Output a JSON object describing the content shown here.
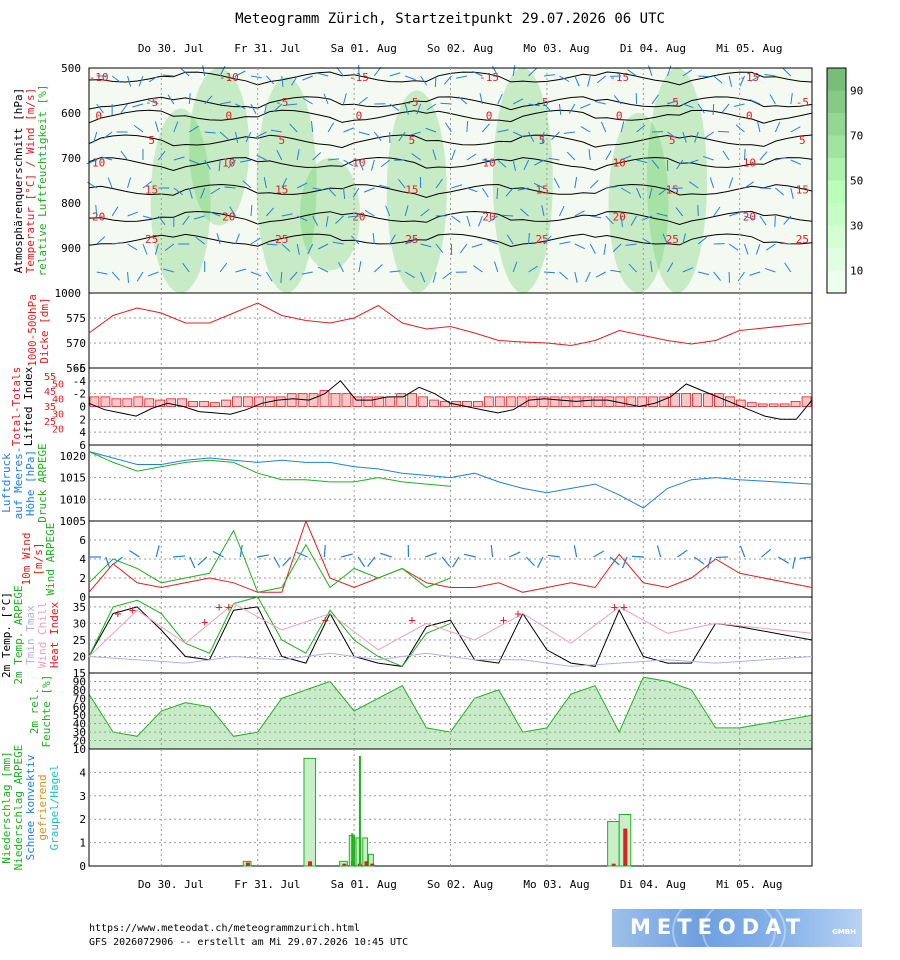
{
  "title": "Meteogramm Zürich, Startzeitpunkt 29.07.2026 06 UTC",
  "footer": {
    "url": "https://www.meteodat.ch/meteogrammzurich.html",
    "run": "GFS 2026072906 -- erstellt am Mi 29.07.2026 10:45 UTC"
  },
  "logo": {
    "text": "METEODAT",
    "sub": "GMBH",
    "name": "meteodat-logo"
  },
  "colors": {
    "red": "#e02020",
    "blue": "#2080e0",
    "green": "#20b020",
    "black": "#000000",
    "grid": "#9a9a9a",
    "rh_fill": "#c8ecc8",
    "rh_bar_hi": "#3ec43e",
    "rh_bar_lo": "#ffffff",
    "pink": "#f0a0c0",
    "lavender": "#b0b0f0",
    "orange": "#e09020",
    "cyan": "#20c0c0",
    "precip_fill": "#c8f0c8"
  },
  "chart_data": [
    {
      "id": "cross-section",
      "type": "heatmap",
      "ylabels": [
        "Atmosphärenquerschnitt [hPa]",
        "Temperatur [°C] / Wind [m/s]",
        "relative Luftfeuchtigkeit [%]"
      ],
      "ylabel_colors": [
        "#000000",
        "#e02020",
        "#20b020"
      ],
      "days_top": [
        "Do 30. Jul",
        "Fr 31. Jul",
        "Sa 01. Aug",
        "So 02. Aug",
        "Mo 03. Aug",
        "Di 04. Aug",
        "Mi 05. Aug"
      ],
      "yticks": [
        "500",
        "600",
        "700",
        "800",
        "900",
        "1000"
      ],
      "ylim": [
        500,
        1000
      ],
      "colorbar": {
        "ticks": [
          "90",
          "70",
          "50",
          "30",
          "10"
        ],
        "range": [
          0,
          100
        ]
      },
      "isotherms": [
        {
          "level": 520,
          "labels": [
            "-10",
            "-10",
            "-15",
            "-15",
            "-15",
            "-15"
          ]
        },
        {
          "level": 575,
          "labels": [
            "-5",
            "-5",
            "-5",
            "-5",
            "-5",
            "-5"
          ]
        },
        {
          "level": 605,
          "labels": [
            "0",
            "0",
            "0",
            "0",
            "0",
            "0"
          ]
        },
        {
          "level": 660,
          "labels": [
            "5",
            "5",
            "5",
            "5",
            "5",
            "5"
          ]
        },
        {
          "level": 710,
          "labels": [
            "10",
            "10",
            "10",
            "10",
            "10",
            "10"
          ]
        },
        {
          "level": 770,
          "labels": [
            "15",
            "15",
            "15",
            "15",
            "15",
            "15"
          ]
        },
        {
          "level": 830,
          "labels": [
            "20",
            "20",
            "20",
            "20",
            "20",
            "20"
          ]
        },
        {
          "level": 880,
          "labels": [
            "25",
            "25",
            "25",
            "25",
            "25",
            "25"
          ]
        }
      ],
      "humid_columns": [
        {
          "x": 0.95,
          "top": 590,
          "bottom": 1000
        },
        {
          "x": 1.35,
          "top": 500,
          "bottom": 850
        },
        {
          "x": 2.05,
          "top": 520,
          "bottom": 1000
        },
        {
          "x": 2.5,
          "top": 700,
          "bottom": 950
        },
        {
          "x": 3.4,
          "top": 550,
          "bottom": 1000
        },
        {
          "x": 4.5,
          "top": 500,
          "bottom": 1000
        },
        {
          "x": 5.7,
          "top": 600,
          "bottom": 1000
        },
        {
          "x": 6.1,
          "top": 500,
          "bottom": 1000
        }
      ]
    },
    {
      "id": "thickness",
      "type": "line",
      "ylabels": [
        "1000-500hPa",
        "Dicke [dm]"
      ],
      "ylabel_colors": [
        "#e02020",
        "#e02020"
      ],
      "yticks": [
        "575",
        "570",
        "565"
      ],
      "ylim": [
        565,
        580
      ],
      "x": [
        0,
        0.25,
        0.5,
        0.75,
        1,
        1.25,
        1.5,
        1.75,
        2,
        2.25,
        2.5,
        2.75,
        3,
        3.25,
        3.5,
        3.75,
        4,
        4.25,
        4.5,
        4.75,
        5,
        5.25,
        5.5,
        5.75,
        6,
        6.25,
        6.5,
        6.75,
        7.5
      ],
      "series": [
        {
          "color": "#e02020",
          "values": [
            572,
            575.5,
            577,
            576,
            574,
            574,
            576,
            578,
            575.5,
            574.5,
            574,
            575,
            577.5,
            574,
            572.8,
            573.3,
            572,
            570.5,
            570.2,
            570,
            569.5,
            570.5,
            572.5,
            571.5,
            570.5,
            569.8,
            570.5,
            572.5,
            574
          ]
        }
      ]
    },
    {
      "id": "lifted-index",
      "type": "bar",
      "ylabels": [
        "Total-Totals",
        "Lifted Index"
      ],
      "ylabel_colors": [
        "#e02020",
        "#000000"
      ],
      "left_ticks": [
        "-6",
        "-4",
        "-2",
        "0",
        "2",
        "4",
        "6"
      ],
      "tt_ticks": [
        "55",
        "50",
        "45",
        "40",
        "35",
        "30",
        "25",
        "20"
      ],
      "ylim": [
        -6,
        6
      ],
      "bar_values": [
        1.5,
        1.5,
        1.2,
        1.2,
        1.5,
        1.2,
        1.0,
        1.2,
        1.2,
        0.8,
        0.8,
        0.6,
        1.0,
        1.5,
        1.5,
        1.5,
        1.5,
        1.5,
        2.0,
        2.0,
        2.0,
        2.5,
        2.0,
        2.0,
        1.5,
        1.5,
        1.5,
        1.5,
        2.0,
        2.0,
        1.5,
        1.0,
        0.8,
        0.8,
        0.8,
        0.8,
        1.5,
        1.5,
        1.5,
        1.5,
        1.5,
        1.5,
        1.5,
        1.5,
        1.5,
        1.5,
        1.5,
        1.5,
        1.5,
        1.5,
        1.5,
        1.5,
        1.5,
        2.0,
        2.0,
        2.0,
        2.0,
        2.0,
        1.5,
        1.0,
        0.6,
        0.4,
        0.4,
        0.4,
        0.8,
        1.5
      ],
      "li_values": [
        -0.5,
        0.5,
        1.0,
        1.5,
        0.3,
        -0.5,
        0.0,
        0.8,
        1.0,
        1.2,
        0.5,
        -0.5,
        -1.0,
        -1.2,
        -1.0,
        -2.0,
        -4.0,
        -1.0,
        -1.0,
        -1.5,
        -1.5,
        -3.0,
        -2.0,
        -0.5,
        0.0,
        0.5,
        1.0,
        0.5,
        -1.0,
        -1.2,
        -1.0,
        -0.8,
        -1.0,
        -1.0,
        -0.5,
        0.0,
        -0.5,
        -1.5,
        -3.5,
        -2.5,
        -1.5,
        -0.5,
        0.5,
        1.5,
        2.0,
        2.0,
        -1.0
      ]
    },
    {
      "id": "pressure",
      "type": "line",
      "ylabels": [
        "Luftdruck",
        "auf Meeres-",
        "Höhe [hPa]",
        "Druck ARPEGE"
      ],
      "ylabel_colors": [
        "#2080e0",
        "#2080e0",
        "#2080e0",
        "#20b020"
      ],
      "yticks": [
        "1020",
        "1015",
        "1010",
        "1005"
      ],
      "ylim": [
        1005,
        1022.5
      ],
      "series": [
        {
          "color": "#2080e0",
          "x": [
            0,
            0.25,
            0.5,
            0.75,
            1,
            1.25,
            1.5,
            1.75,
            2,
            2.25,
            2.5,
            2.75,
            3,
            3.25,
            3.5,
            3.75,
            4,
            4.25,
            4.5,
            4.75,
            5,
            5.25,
            5.5,
            5.75,
            6,
            6.25,
            6.5,
            6.75,
            7.5
          ],
          "values": [
            1021,
            1019.5,
            1018,
            1018,
            1019,
            1019.5,
            1019,
            1018.5,
            1019,
            1018.5,
            1018.5,
            1017.5,
            1017,
            1016,
            1015.5,
            1015,
            1016,
            1014,
            1012.5,
            1011.5,
            1012.5,
            1013.5,
            1011,
            1008,
            1012.5,
            1014.5,
            1015,
            1014.5,
            1013.5
          ]
        },
        {
          "color": "#20b020",
          "x": [
            0,
            0.25,
            0.5,
            0.75,
            1,
            1.25,
            1.5,
            1.75,
            2,
            2.25,
            2.5,
            2.75,
            3,
            3.25,
            3.5,
            3.75
          ],
          "values": [
            1021,
            1018.5,
            1016.5,
            1017.5,
            1018.5,
            1019,
            1018.5,
            1016,
            1014.5,
            1014.5,
            1014,
            1014,
            1015,
            1014,
            1013.5,
            1013
          ]
        }
      ]
    },
    {
      "id": "wind10m",
      "type": "line",
      "ylabels": [
        "10m Wind",
        "[m/s]",
        "Wind ARPEGE"
      ],
      "ylabel_colors": [
        "#e02020",
        "#e02020",
        "#20b020"
      ],
      "yticks": [
        "6",
        "4",
        "2",
        "0"
      ],
      "ylim": [
        0,
        8
      ],
      "series": [
        {
          "color": "#e02020",
          "x": [
            0,
            0.25,
            0.5,
            0.75,
            1,
            1.25,
            1.5,
            1.75,
            2,
            2.25,
            2.5,
            2.75,
            3,
            3.25,
            3.5,
            3.75,
            4,
            4.25,
            4.5,
            4.75,
            5,
            5.25,
            5.5,
            5.75,
            6,
            6.25,
            6.5,
            6.75,
            7.5
          ],
          "values": [
            0.5,
            3.5,
            1.5,
            1.0,
            1.5,
            2.0,
            1.5,
            0.5,
            0.5,
            8.0,
            2.0,
            1.0,
            2.0,
            3.0,
            1.5,
            1.0,
            1.0,
            1.5,
            0.5,
            1.0,
            1.5,
            1.0,
            4.5,
            1.5,
            1.0,
            2.0,
            4.0,
            2.5,
            1.0
          ]
        },
        {
          "color": "#20b020",
          "x": [
            0,
            0.25,
            0.5,
            0.75,
            1,
            1.25,
            1.5,
            1.75,
            2,
            2.25,
            2.5,
            2.75,
            3,
            3.25,
            3.5,
            3.75
          ],
          "values": [
            1.5,
            4.0,
            3.0,
            1.5,
            2.0,
            2.5,
            7.0,
            0.5,
            1.0,
            5.5,
            1.0,
            3.0,
            2.0,
            3.0,
            1.0,
            2.0
          ]
        }
      ]
    },
    {
      "id": "temp2m",
      "type": "line",
      "ylabels": [
        "2m Temp. [°C]",
        "2m Temp. ARPEGE",
        "Tmin  Tmax",
        "Wind Chill",
        "Heat Index"
      ],
      "ylabel_colors": [
        "#000000",
        "#20b020",
        "#b0b0f0",
        "#f0a0c0",
        "#e02020"
      ],
      "yticks": [
        "35",
        "30",
        "25",
        "20",
        "15"
      ],
      "ylim": [
        15,
        38
      ],
      "series": [
        {
          "color": "#000000",
          "x": [
            0,
            0.25,
            0.5,
            0.75,
            1,
            1.25,
            1.5,
            1.75,
            2,
            2.25,
            2.5,
            2.75,
            3,
            3.25,
            3.5,
            3.75,
            4,
            4.25,
            4.5,
            4.75,
            5,
            5.25,
            5.5,
            5.75,
            6,
            6.25,
            6.5,
            6.75,
            7.5
          ],
          "values": [
            20,
            33,
            35,
            28,
            20,
            19,
            34,
            35,
            20,
            18,
            33,
            20,
            18,
            17,
            29,
            31,
            19,
            18,
            33,
            22,
            18,
            17,
            34,
            20,
            18,
            18,
            30,
            29,
            25
          ]
        },
        {
          "color": "#20b020",
          "x": [
            0,
            0.25,
            0.5,
            0.75,
            1,
            1.25,
            1.5,
            1.75,
            2,
            2.25,
            2.5,
            2.75,
            3,
            3.25,
            3.5,
            3.75
          ],
          "values": [
            20,
            35,
            37,
            33,
            24,
            21,
            36,
            38,
            25,
            21,
            34,
            25,
            20,
            17,
            27,
            30
          ]
        },
        {
          "color": "#b0b0f0",
          "x": [
            0,
            0.5,
            1,
            1.5,
            2,
            2.5,
            3,
            3.5,
            4,
            4.5,
            5,
            5.5,
            6,
            6.5,
            7.5
          ],
          "values": [
            20,
            19,
            18,
            20,
            19,
            21,
            19,
            21,
            19,
            19,
            17,
            18,
            19,
            18,
            20
          ]
        },
        {
          "color": "#f0a0c0",
          "x": [
            0,
            0.5,
            1,
            1.5,
            2,
            2.5,
            3,
            3.5,
            4,
            4.5,
            5,
            5.5,
            6,
            6.5,
            7.5
          ],
          "values": [
            20,
            34,
            24,
            36,
            28,
            33,
            22,
            30,
            25,
            33,
            24,
            35,
            27,
            30,
            27
          ]
        }
      ],
      "heat_index_markers": [
        {
          "x": 0.3,
          "y": 33
        },
        {
          "x": 0.45,
          "y": 34
        },
        {
          "x": 1.2,
          "y": 30.5
        },
        {
          "x": 1.35,
          "y": 35
        },
        {
          "x": 1.45,
          "y": 35
        },
        {
          "x": 2.45,
          "y": 31
        },
        {
          "x": 3.35,
          "y": 31
        },
        {
          "x": 4.3,
          "y": 31
        },
        {
          "x": 4.45,
          "y": 33
        },
        {
          "x": 5.45,
          "y": 35
        },
        {
          "x": 5.55,
          "y": 35
        }
      ]
    },
    {
      "id": "rh2m",
      "type": "area",
      "ylabels": [
        "2m rel.",
        "Feuchte [%]"
      ],
      "ylabel_colors": [
        "#20b020",
        "#20b020"
      ],
      "yticks": [
        "90",
        "80",
        "70",
        "60",
        "50",
        "40",
        "30",
        "20",
        "10"
      ],
      "ylim": [
        10,
        100
      ],
      "x": [
        0,
        0.25,
        0.5,
        0.75,
        1,
        1.25,
        1.5,
        1.75,
        2,
        2.25,
        2.5,
        2.75,
        3,
        3.25,
        3.5,
        3.75,
        4,
        4.25,
        4.5,
        4.75,
        5,
        5.25,
        5.5,
        5.75,
        6,
        6.25,
        6.5,
        6.75,
        7.5
      ],
      "values": [
        75,
        30,
        25,
        55,
        65,
        60,
        25,
        30,
        70,
        80,
        90,
        55,
        70,
        85,
        35,
        30,
        70,
        80,
        30,
        35,
        75,
        85,
        30,
        95,
        90,
        80,
        35,
        35,
        50
      ]
    },
    {
      "id": "precip",
      "type": "bar",
      "ylabels": [
        "Niederschlag [mm]",
        "Niederschlag ARPEGE",
        "Schnee  konvektiv",
        "gefrierend",
        "Graupel/Hagel"
      ],
      "ylabel_colors": [
        "#20b020",
        "#20b020",
        "#2080e0",
        "#e09020",
        "#20c0c0"
      ],
      "yticks": [
        "4",
        "3",
        "2",
        "1",
        "0"
      ],
      "ylim": [
        0,
        5
      ],
      "days_bottom": [
        "Do 30. Jul",
        "Fr 31. Jul",
        "Sa 01. Aug",
        "So 02. Aug",
        "Mo 03. Aug",
        "Di 04. Aug",
        "Mi 05. Aug"
      ],
      "bars": [
        {
          "x": 1.6,
          "w": 0.08,
          "value": 0.2,
          "conv": 0.15
        },
        {
          "x": 2.23,
          "w": 0.12,
          "value": 4.6,
          "conv": 0.2
        },
        {
          "x": 2.6,
          "w": 0.08,
          "value": 0.2,
          "conv": 0.1
        },
        {
          "x": 2.7,
          "w": 0.05,
          "value": 1.3,
          "conv": 0.2
        },
        {
          "x": 2.77,
          "w": 0.05,
          "value": 1.2,
          "conv": 0.1
        },
        {
          "x": 2.84,
          "w": 0.05,
          "value": 1.2,
          "conv": 0.2
        },
        {
          "x": 2.9,
          "w": 0.05,
          "value": 0.5,
          "conv": 0.1
        },
        {
          "x": 5.38,
          "w": 0.12,
          "value": 1.9,
          "conv": 0.1
        },
        {
          "x": 5.5,
          "w": 0.12,
          "value": 2.2,
          "conv": 1.6
        }
      ],
      "arpege_lines": [
        {
          "x": 2.8,
          "value": 4.7
        },
        {
          "x": 2.72,
          "value": 1.4
        },
        {
          "x": 2.74,
          "value": 1.3
        }
      ]
    }
  ]
}
